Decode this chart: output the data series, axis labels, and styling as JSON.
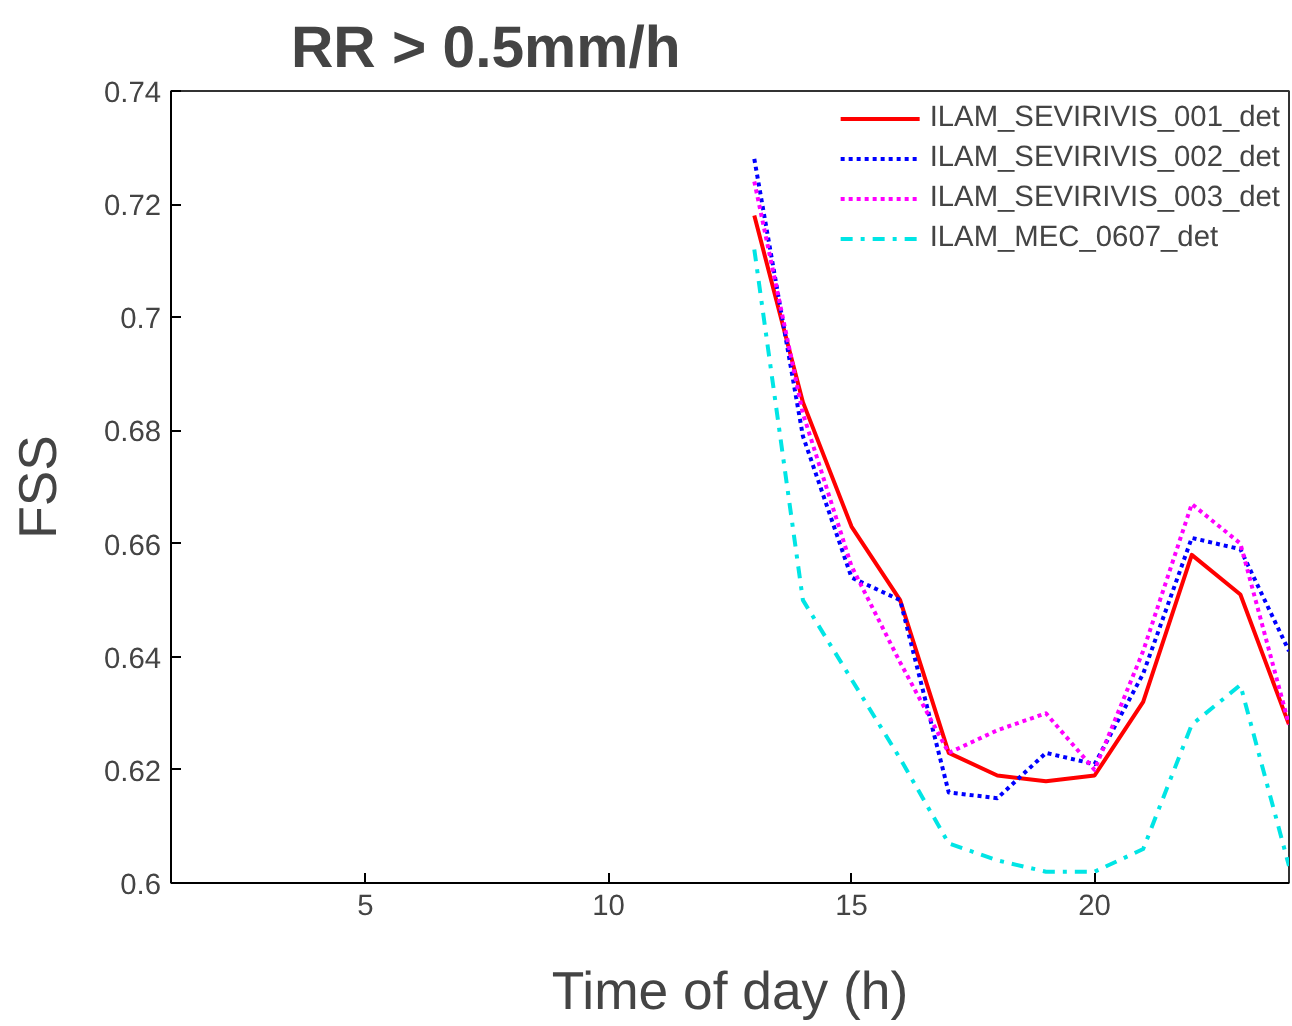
{
  "chart_data": {
    "type": "line",
    "title": "RR > 0.5mm/h",
    "xlabel": "Time of day (h)",
    "ylabel": "FSS",
    "x": [
      13,
      14,
      15,
      16,
      17,
      18,
      19,
      20,
      21,
      22,
      23,
      24
    ],
    "series": [
      {
        "name": "ILAM_SEVIRIVIS_001_det",
        "color": "#ff0000",
        "line_style": "solid",
        "values": [
          0.718,
          0.685,
          0.663,
          0.65,
          0.623,
          0.619,
          0.618,
          0.619,
          0.632,
          0.658,
          0.651,
          0.628
        ]
      },
      {
        "name": "ILAM_SEVIRIVIS_002_det",
        "color": "#0000ff",
        "line_style": "dotted",
        "values": [
          0.728,
          0.679,
          0.654,
          0.65,
          0.616,
          0.615,
          0.623,
          0.621,
          0.637,
          0.661,
          0.659,
          0.641
        ]
      },
      {
        "name": "ILAM_SEVIRIVIS_003_det",
        "color": "#ff00ff",
        "line_style": "dotted",
        "values": [
          0.724,
          0.683,
          0.656,
          0.639,
          0.623,
          0.627,
          0.63,
          0.62,
          0.641,
          0.667,
          0.66,
          0.628
        ]
      },
      {
        "name": "ILAM_MEC_0607_det",
        "color": "#00e5e5",
        "line_style": "dashdot",
        "values": [
          0.712,
          0.65,
          0.636,
          0.622,
          0.607,
          0.604,
          0.602,
          0.602,
          0.606,
          0.628,
          0.635,
          0.603
        ]
      }
    ],
    "xlim": [
      1,
      24
    ],
    "xticks": [
      5,
      10,
      15,
      20
    ],
    "ylim": [
      0.6,
      0.74
    ],
    "yticks": [
      0.6,
      0.62,
      0.64,
      0.66,
      0.68,
      0.7,
      0.72,
      0.74
    ],
    "grid": false,
    "legend": "top right",
    "marker": "none"
  }
}
